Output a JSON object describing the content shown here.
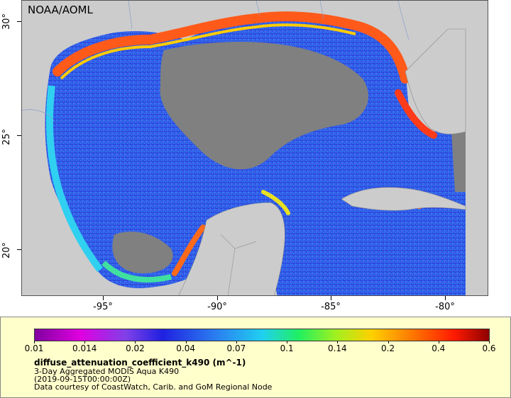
{
  "map": {
    "credit": "NOAA/AOML",
    "lat_labels": [
      "30°",
      "25°",
      "20°"
    ],
    "lon_labels": [
      "-95°",
      "-90°",
      "-85°",
      "-80°"
    ],
    "colors": {
      "land": "#cccccc",
      "no_data": "#808080",
      "open_water": "#2a6cf0"
    }
  },
  "legend": {
    "variable": "diffuse_attenuation_coefficient_k490 (m^-1)",
    "product": "3-Day Aggregated MODIS Aqua K490",
    "time": "(2019-09-15T00:00:00Z)",
    "credit": "Data courtesy of CoastWatch, Carib. and GoM Regional Node",
    "ticks": [
      "0.01",
      "0.014",
      "0.02",
      "0.04",
      "0.07",
      "0.1",
      "0.14",
      "0.2",
      "0.4",
      "0.6"
    ],
    "scale": "log",
    "range": [
      0.01,
      0.6
    ]
  }
}
